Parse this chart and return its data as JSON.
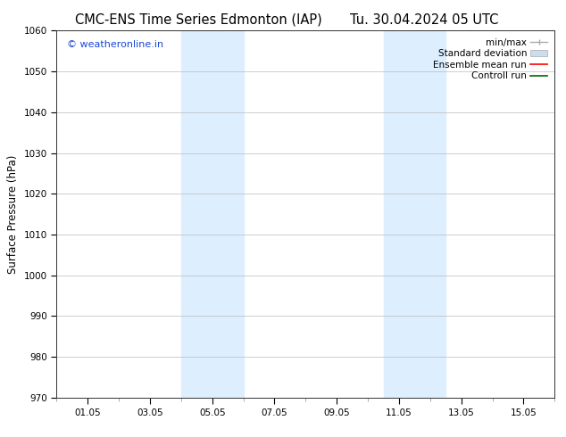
{
  "title_left": "CMC-ENS Time Series Edmonton (IAP)",
  "title_right": "Tu. 30.04.2024 05 UTC",
  "ylabel": "Surface Pressure (hPa)",
  "ylim": [
    970,
    1060
  ],
  "yticks": [
    970,
    980,
    990,
    1000,
    1010,
    1020,
    1030,
    1040,
    1050,
    1060
  ],
  "xtick_labels": [
    "01.05",
    "03.05",
    "05.05",
    "07.05",
    "09.05",
    "11.05",
    "13.05",
    "15.05"
  ],
  "xtick_positions": [
    1,
    3,
    5,
    7,
    9,
    11,
    13,
    15
  ],
  "xlim": [
    0,
    16
  ],
  "shaded_bands": [
    {
      "x_start": 4.0,
      "x_end": 6.0,
      "color": "#ddeeff"
    },
    {
      "x_start": 10.5,
      "x_end": 12.5,
      "color": "#ddeeff"
    }
  ],
  "watermark_text": "© weatheronline.in",
  "watermark_color": "#1a47d6",
  "watermark_fontsize": 8,
  "bg_color": "#ffffff",
  "plot_bg_color": "#ffffff",
  "grid_color": "#bbbbbb",
  "title_fontsize": 10.5,
  "axis_fontsize": 8.5,
  "tick_fontsize": 7.5,
  "legend_fontsize": 7.5,
  "minmax_color": "#aaaaaa",
  "std_color": "#ccddef",
  "ensemble_color": "#ff0000",
  "control_color": "#006600"
}
